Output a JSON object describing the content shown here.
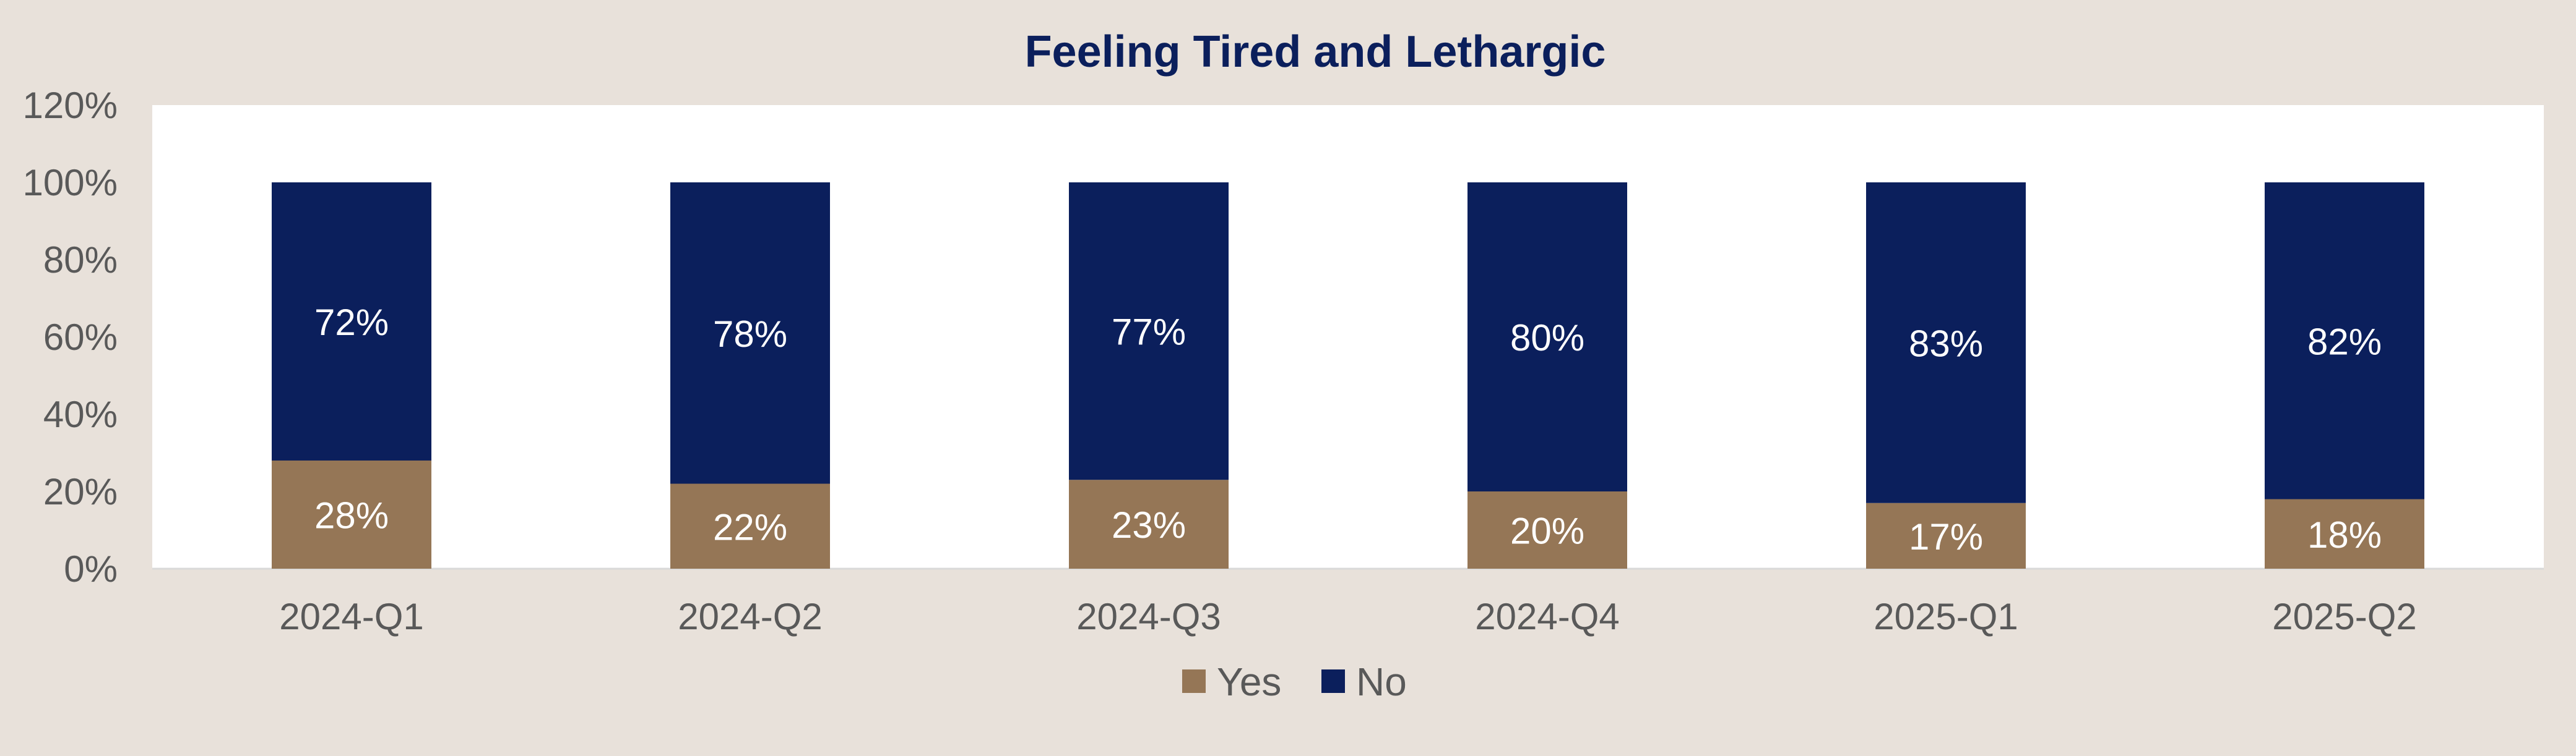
{
  "chart_data": {
    "type": "bar",
    "stacked": true,
    "title": "Feeling Tired and Lethargic",
    "xlabel": "",
    "ylabel": "",
    "categories": [
      "2024-Q1",
      "2024-Q2",
      "2024-Q3",
      "2024-Q4",
      "2025-Q1",
      "2025-Q2"
    ],
    "series": [
      {
        "name": "Yes",
        "color": "#957656",
        "values": [
          28,
          22,
          23,
          20,
          17,
          18
        ]
      },
      {
        "name": "No",
        "color": "#0b1f5c",
        "values": [
          72,
          78,
          77,
          80,
          83,
          82
        ]
      }
    ],
    "data_label_format": "percent",
    "ylim": [
      0,
      120
    ],
    "yticks": [
      0,
      20,
      40,
      60,
      80,
      100,
      120
    ],
    "ytick_labels": [
      "0%",
      "20%",
      "40%",
      "60%",
      "80%",
      "100%",
      "120%"
    ],
    "grid": false,
    "legend_position": "bottom",
    "colors": {
      "background": "#e8e1da",
      "plot_background": "#ffffff",
      "title": "#0b1f5c",
      "axis_text": "#595959",
      "data_label": "#ffffff"
    }
  }
}
